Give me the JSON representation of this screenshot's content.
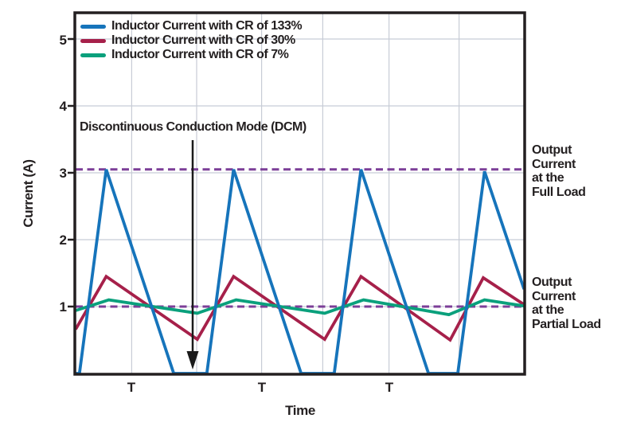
{
  "chart_data": {
    "type": "line",
    "title": "",
    "xlabel": "Time",
    "ylabel": "Current (A)",
    "x_unit": "T (switching period)",
    "xlim_T": [
      0,
      3.52
    ],
    "ylim": [
      0,
      5.4
    ],
    "grid": true,
    "legend_position": "top-left-inside",
    "y_ticks": [
      1,
      2,
      3,
      4,
      5
    ],
    "x_ticks": [
      {
        "t": 0.44,
        "label": "T"
      },
      {
        "t": 1.46,
        "label": "T"
      },
      {
        "t": 2.46,
        "label": "T"
      }
    ],
    "grid_ts": [
      0.44,
      0.95,
      1.46,
      1.94,
      2.46,
      3.01
    ],
    "series": [
      {
        "name": "Inductor Current with CR of 133%",
        "color": "#1674bb",
        "points": [
          [
            0,
            0
          ],
          [
            0.03,
            0
          ],
          [
            0.24,
            3.05
          ],
          [
            0.77,
            0
          ],
          [
            1.03,
            0
          ],
          [
            1.24,
            3.05
          ],
          [
            1.77,
            0
          ],
          [
            2.03,
            0
          ],
          [
            2.24,
            3.05
          ],
          [
            2.77,
            0
          ],
          [
            3.0,
            0
          ],
          [
            3.21,
            3.02
          ],
          [
            3.52,
            1.26
          ]
        ]
      },
      {
        "name": "Inductor Current with CR of 30%",
        "color": "#a6204a",
        "points": [
          [
            0,
            0.66
          ],
          [
            0.24,
            1.45
          ],
          [
            0.955,
            0.51
          ],
          [
            1.24,
            1.45
          ],
          [
            1.955,
            0.51
          ],
          [
            2.24,
            1.45
          ],
          [
            2.94,
            0.5
          ],
          [
            3.2,
            1.43
          ],
          [
            3.52,
            1.03
          ]
        ]
      },
      {
        "name": "Inductor Current with CR of 7%",
        "color": "#0aa07c",
        "points": [
          [
            0,
            0.94
          ],
          [
            0.26,
            1.1
          ],
          [
            0.955,
            0.9
          ],
          [
            1.26,
            1.1
          ],
          [
            1.955,
            0.9
          ],
          [
            2.26,
            1.1
          ],
          [
            2.93,
            0.88
          ],
          [
            3.21,
            1.1
          ],
          [
            3.52,
            1.01
          ]
        ]
      }
    ],
    "reference_lines": [
      {
        "label": "Output\nCurrent\nat the\nFull Load",
        "y": 3.05,
        "color": "#7c3f98",
        "style": "dashed"
      },
      {
        "label": "Output\nCurrent\nat the\nPartial Load",
        "y": 1.0,
        "color": "#7c3f98",
        "style": "dashed"
      }
    ],
    "annotations": {
      "dcm_text": "Discontinuous Conduction Mode (DCM)",
      "dcm_arrow_t": 0.92,
      "dcm_arrow_points_to_y": 0
    }
  }
}
